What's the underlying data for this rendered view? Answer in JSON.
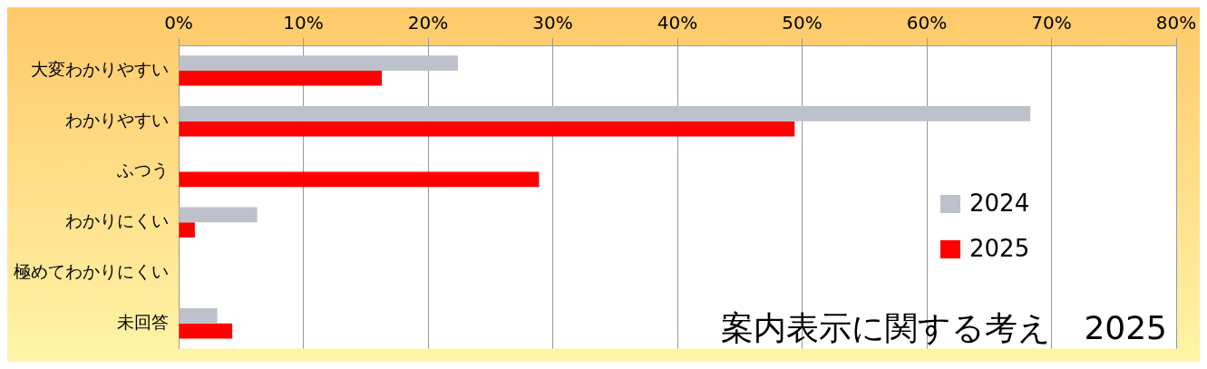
{
  "chart_data": {
    "type": "bar",
    "orientation": "horizontal",
    "title": "案内表示に関する考え　2025",
    "categories": [
      "大変わかりやすい",
      "わかりやすい",
      "ふつう",
      "わかりにくい",
      "極めてわかりにくい",
      "未回答"
    ],
    "series": [
      {
        "name": "2024",
        "color": "#bcc1cc",
        "values": [
          22.4,
          68.3,
          0,
          6.3,
          0,
          3.1
        ]
      },
      {
        "name": "2025",
        "color": "#ff0000",
        "values": [
          16.3,
          49.4,
          28.9,
          1.3,
          0,
          4.3
        ]
      }
    ],
    "xlim": [
      0,
      80
    ],
    "xticks": [
      {
        "value": 0,
        "label": "0%"
      },
      {
        "value": 10,
        "label": "10%"
      },
      {
        "value": 20,
        "label": "20%"
      },
      {
        "value": 30,
        "label": "30%"
      },
      {
        "value": 40,
        "label": "40%"
      },
      {
        "value": 50,
        "label": "50%"
      },
      {
        "value": 60,
        "label": "60%"
      },
      {
        "value": 70,
        "label": "70%"
      },
      {
        "value": 80,
        "label": "80%"
      }
    ],
    "grid": "x",
    "legend": "right"
  }
}
